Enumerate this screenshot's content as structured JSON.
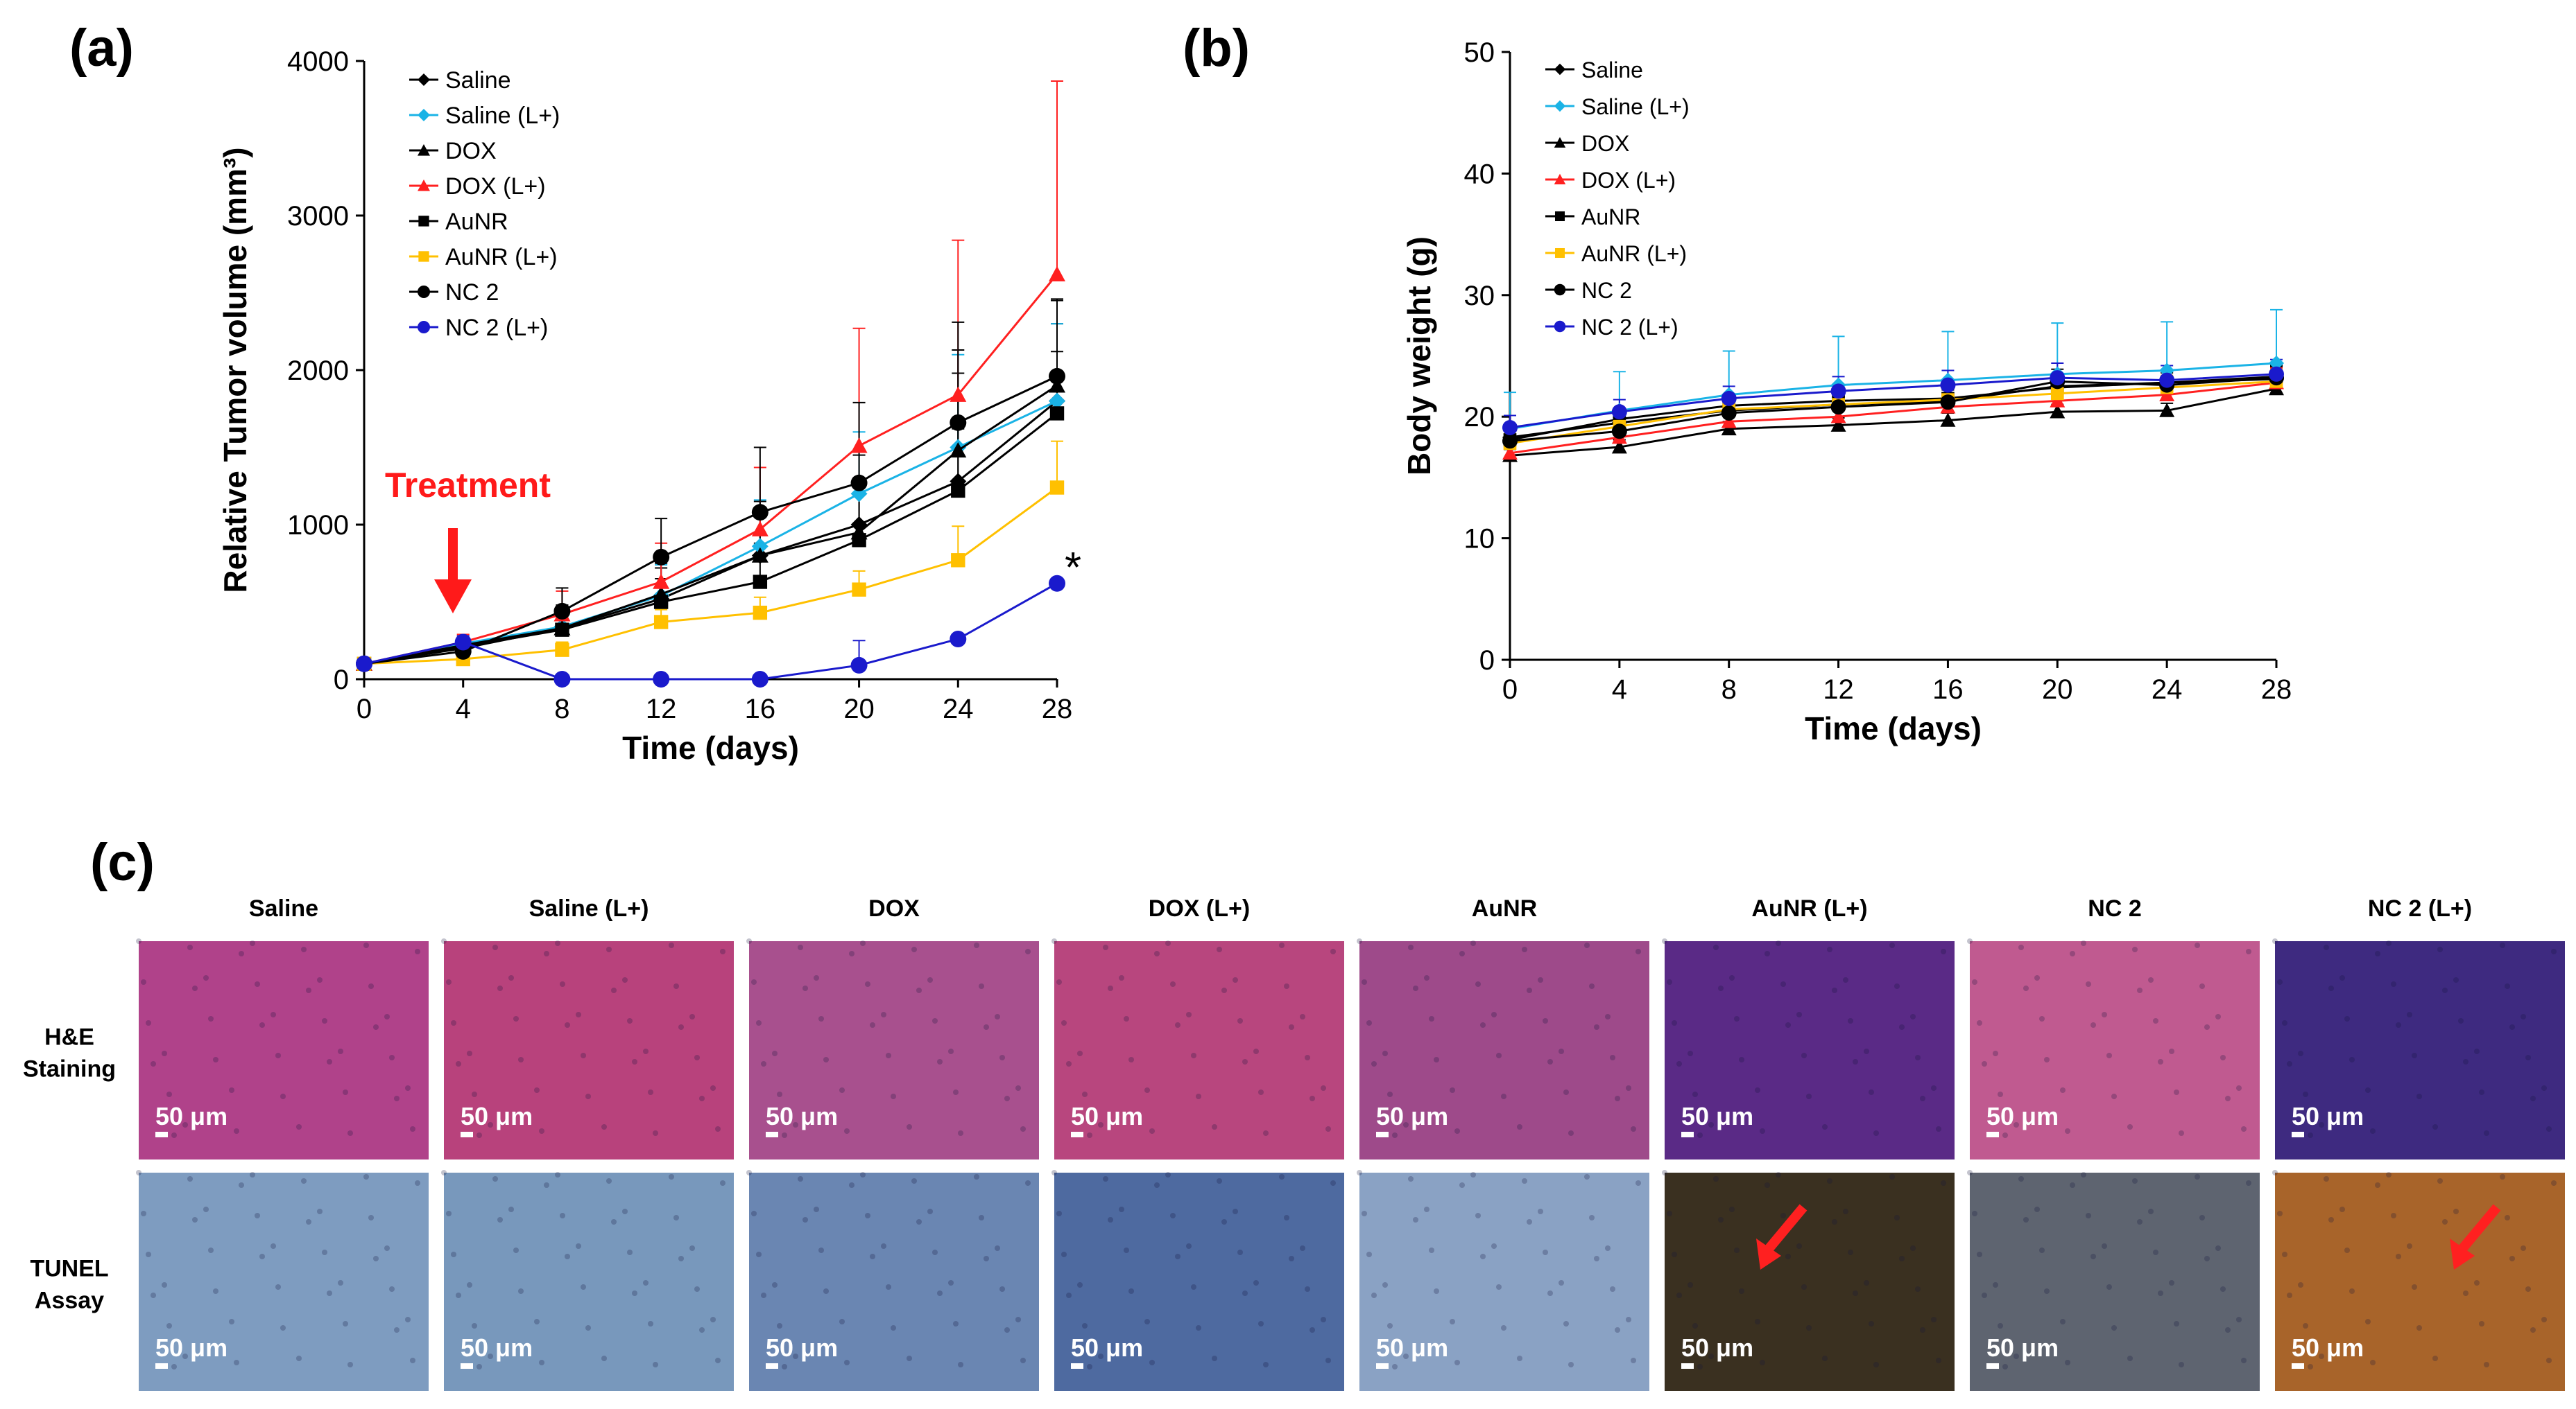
{
  "panels": {
    "a": "(a)",
    "b": "(b)",
    "c": "(c)"
  },
  "treatment_label": "Treatment",
  "significance_mark": "*",
  "series_styles": [
    {
      "name": "Saline",
      "color": "#000000",
      "marker": "diamond"
    },
    {
      "name": "Saline (L+)",
      "color": "#1ab3e6",
      "marker": "diamond"
    },
    {
      "name": "DOX",
      "color": "#000000",
      "marker": "triangle"
    },
    {
      "name": "DOX (L+)",
      "color": "#ff2020",
      "marker": "triangle"
    },
    {
      "name": "AuNR",
      "color": "#000000",
      "marker": "square"
    },
    {
      "name": "AuNR (L+)",
      "color": "#ffc000",
      "marker": "square"
    },
    {
      "name": "NC 2",
      "color": "#000000",
      "marker": "circle"
    },
    {
      "name": "NC 2 (L+)",
      "color": "#1a1acc",
      "marker": "circle"
    }
  ],
  "chart_data": [
    {
      "type": "line",
      "title": "",
      "xlabel": "Time (days)",
      "ylabel": "Relative Tumor volume (mm³)",
      "x": [
        0,
        4,
        8,
        12,
        16,
        20,
        24,
        28
      ],
      "xlim": [
        0,
        28
      ],
      "ylim": [
        0,
        4000
      ],
      "xticks": [
        0,
        4,
        8,
        12,
        16,
        20,
        24,
        28
      ],
      "yticks": [
        0,
        1000,
        2000,
        3000,
        4000
      ],
      "legend": "top-left",
      "series": [
        {
          "name": "Saline",
          "values": [
            100,
            200,
            330,
            520,
            800,
            1000,
            1280,
            1800
          ],
          "error": [
            0,
            40,
            150,
            200,
            350,
            450,
            700,
            500
          ]
        },
        {
          "name": "Saline (L+)",
          "values": [
            100,
            230,
            340,
            540,
            860,
            1200,
            1500,
            1800
          ],
          "error": [
            0,
            40,
            120,
            200,
            300,
            400,
            600,
            500
          ]
        },
        {
          "name": "DOX",
          "values": [
            100,
            220,
            330,
            550,
            800,
            950,
            1480,
            1900
          ],
          "error": [
            0,
            40,
            120,
            200,
            300,
            350,
            650,
            550
          ]
        },
        {
          "name": "DOX (L+)",
          "values": [
            100,
            240,
            420,
            630,
            970,
            1510,
            1840,
            2620
          ],
          "error": [
            0,
            50,
            150,
            250,
            400,
            760,
            1000,
            1250
          ]
        },
        {
          "name": "AuNR",
          "values": [
            100,
            210,
            320,
            500,
            630,
            900,
            1220,
            1720
          ],
          "error": [
            0,
            40,
            100,
            150,
            250,
            300,
            400,
            400
          ]
        },
        {
          "name": "AuNR (L+)",
          "values": [
            100,
            130,
            190,
            370,
            430,
            580,
            770,
            1240
          ],
          "error": [
            0,
            20,
            50,
            80,
            100,
            120,
            220,
            300
          ]
        },
        {
          "name": "NC 2",
          "values": [
            100,
            180,
            440,
            790,
            1080,
            1270,
            1660,
            1960
          ],
          "error": [
            0,
            30,
            150,
            250,
            420,
            520,
            650,
            500
          ]
        },
        {
          "name": "NC 2 (L+)",
          "values": [
            100,
            240,
            0,
            0,
            0,
            90,
            260,
            620
          ],
          "error": [
            0,
            40,
            0,
            0,
            0,
            160,
            0,
            0
          ]
        }
      ]
    },
    {
      "type": "line",
      "title": "",
      "xlabel": "Time (days)",
      "ylabel": "Body weight (g)",
      "x": [
        0,
        4,
        8,
        12,
        16,
        20,
        24,
        28
      ],
      "xlim": [
        0,
        28
      ],
      "ylim": [
        0,
        50
      ],
      "xticks": [
        0,
        4,
        8,
        12,
        16,
        20,
        24,
        28
      ],
      "yticks": [
        0,
        10,
        20,
        30,
        40,
        50
      ],
      "legend": "top-left",
      "series": [
        {
          "name": "Saline",
          "values": [
            18.3,
            19.5,
            20.5,
            21.0,
            21.3,
            22.5,
            22.8,
            23.1
          ],
          "error": [
            0.8,
            0.8,
            0.8,
            1.0,
            1.0,
            1.0,
            1.0,
            1.0
          ]
        },
        {
          "name": "Saline (L+)",
          "values": [
            19.0,
            20.5,
            21.8,
            22.6,
            23.0,
            23.5,
            23.8,
            24.4
          ],
          "error": [
            3.0,
            3.2,
            3.6,
            4.0,
            4.0,
            4.2,
            4.0,
            4.4
          ]
        },
        {
          "name": "DOX",
          "values": [
            16.8,
            17.5,
            19.0,
            19.3,
            19.7,
            20.4,
            20.5,
            22.3
          ],
          "error": [
            0.5,
            0.6,
            0.6,
            0.6,
            0.6,
            0.6,
            0.6,
            0.6
          ]
        },
        {
          "name": "DOX (L+)",
          "values": [
            17.0,
            18.3,
            19.6,
            20.0,
            20.8,
            21.3,
            21.8,
            22.8
          ],
          "error": [
            0.8,
            1.0,
            1.0,
            1.0,
            1.0,
            1.2,
            1.2,
            1.2
          ]
        },
        {
          "name": "AuNR",
          "values": [
            18.1,
            19.8,
            20.9,
            21.3,
            21.5,
            22.4,
            22.8,
            23.3
          ],
          "error": [
            0.8,
            0.8,
            0.8,
            1.0,
            1.0,
            1.0,
            1.0,
            1.0
          ]
        },
        {
          "name": "AuNR (L+)",
          "values": [
            17.8,
            19.2,
            20.6,
            21.0,
            21.4,
            21.9,
            22.4,
            22.9
          ],
          "error": [
            0.8,
            0.8,
            0.8,
            1.0,
            1.0,
            1.0,
            1.0,
            1.0
          ]
        },
        {
          "name": "NC 2",
          "values": [
            18.0,
            18.8,
            20.3,
            20.8,
            21.2,
            22.9,
            22.6,
            23.2
          ],
          "error": [
            0.8,
            0.8,
            0.8,
            1.0,
            1.0,
            1.0,
            1.0,
            1.0
          ]
        },
        {
          "name": "NC 2 (L+)",
          "values": [
            19.1,
            20.4,
            21.5,
            22.1,
            22.6,
            23.2,
            23.0,
            23.5
          ],
          "error": [
            1.0,
            1.0,
            1.0,
            1.2,
            1.2,
            1.2,
            1.2,
            1.2
          ]
        }
      ]
    }
  ],
  "histology": {
    "columns": [
      "Saline",
      "Saline (L+)",
      "DOX",
      "DOX (L+)",
      "AuNR",
      "AuNR  (L+)",
      "NC 2",
      "NC 2  (L+)"
    ],
    "rows": [
      {
        "label_line1": "H&E",
        "label_line2": "Staining"
      },
      {
        "label_line1": "TUNEL",
        "label_line2": "Assay"
      }
    ],
    "scale_bar": "50 μm",
    "he_colors": [
      "#b0428a",
      "#b8427c",
      "#a8508e",
      "#b8467e",
      "#9e4a8a",
      "#5a2a86",
      "#c05a90",
      "#3e2a80"
    ],
    "tunel_colors": [
      "#7e9cc0",
      "#7898bc",
      "#6a86b2",
      "#4e6aa0",
      "#8aa2c4",
      "#3a3020",
      "#5e6470",
      "#a8642a"
    ]
  }
}
